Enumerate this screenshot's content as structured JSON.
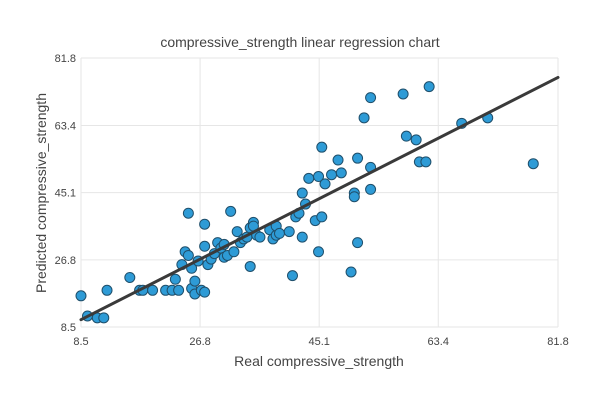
{
  "chart_data": {
    "type": "scatter",
    "title": "compressive_strength linear regression chart",
    "xlabel": "Real compressive_strength",
    "ylabel": "Predicted compressive_strength",
    "xlim": [
      8.5,
      81.8
    ],
    "ylim": [
      8.5,
      81.8
    ],
    "xticks": [
      "8.5",
      "26.8",
      "45.1",
      "63.4",
      "81.8"
    ],
    "yticks": [
      "8.5",
      "26.8",
      "45.1",
      "63.4",
      "81.8"
    ],
    "grid": true,
    "point_color": "#2e9bd6",
    "line_color": "#3a3a3a",
    "regression_line": {
      "x": [
        8.5,
        81.8
      ],
      "y": [
        10.5,
        76.5
      ]
    },
    "points": [
      [
        8.5,
        17.0
      ],
      [
        9.5,
        11.5
      ],
      [
        11.0,
        11.0
      ],
      [
        12.0,
        11.0
      ],
      [
        12.5,
        18.5
      ],
      [
        16.0,
        22.0
      ],
      [
        17.5,
        18.5
      ],
      [
        18.0,
        18.5
      ],
      [
        19.5,
        18.5
      ],
      [
        21.5,
        18.5
      ],
      [
        22.5,
        18.5
      ],
      [
        23.0,
        21.5
      ],
      [
        23.5,
        18.5
      ],
      [
        24.0,
        25.5
      ],
      [
        24.5,
        29.0
      ],
      [
        25.0,
        39.5
      ],
      [
        25.0,
        28.0
      ],
      [
        25.5,
        24.5
      ],
      [
        25.5,
        19.0
      ],
      [
        26.0,
        17.5
      ],
      [
        26.0,
        21.0
      ],
      [
        26.5,
        26.5
      ],
      [
        27.0,
        18.5
      ],
      [
        27.5,
        18.0
      ],
      [
        27.5,
        30.5
      ],
      [
        27.5,
        36.5
      ],
      [
        28.0,
        25.5
      ],
      [
        28.5,
        27.0
      ],
      [
        29.0,
        28.5
      ],
      [
        29.5,
        31.5
      ],
      [
        30.0,
        30.0
      ],
      [
        30.5,
        31.0
      ],
      [
        30.5,
        27.5
      ],
      [
        31.0,
        28.0
      ],
      [
        31.5,
        40.0
      ],
      [
        32.0,
        29.0
      ],
      [
        32.5,
        34.5
      ],
      [
        33.0,
        31.5
      ],
      [
        33.5,
        32.5
      ],
      [
        34.0,
        33.0
      ],
      [
        34.5,
        25.0
      ],
      [
        34.5,
        35.5
      ],
      [
        35.0,
        37.0
      ],
      [
        35.0,
        36.0
      ],
      [
        35.5,
        33.5
      ],
      [
        36.0,
        33.0
      ],
      [
        37.5,
        35.0
      ],
      [
        38.0,
        32.5
      ],
      [
        38.5,
        33.5
      ],
      [
        38.5,
        36.0
      ],
      [
        39.0,
        34.0
      ],
      [
        40.5,
        34.5
      ],
      [
        41.0,
        22.5
      ],
      [
        41.5,
        38.5
      ],
      [
        42.0,
        39.5
      ],
      [
        42.5,
        33.0
      ],
      [
        42.5,
        45.0
      ],
      [
        43.0,
        42.0
      ],
      [
        43.5,
        49.0
      ],
      [
        44.5,
        37.5
      ],
      [
        45.0,
        49.5
      ],
      [
        45.0,
        29.0
      ],
      [
        45.5,
        57.5
      ],
      [
        45.5,
        38.5
      ],
      [
        46.0,
        47.5
      ],
      [
        47.0,
        50.0
      ],
      [
        48.0,
        54.0
      ],
      [
        48.5,
        50.5
      ],
      [
        50.0,
        23.5
      ],
      [
        50.5,
        45.0
      ],
      [
        50.5,
        44.0
      ],
      [
        51.0,
        54.5
      ],
      [
        51.0,
        31.5
      ],
      [
        52.0,
        65.5
      ],
      [
        53.0,
        71.0
      ],
      [
        53.0,
        52.0
      ],
      [
        53.0,
        46.0
      ],
      [
        58.0,
        72.0
      ],
      [
        58.5,
        60.5
      ],
      [
        60.0,
        59.5
      ],
      [
        60.5,
        53.5
      ],
      [
        61.5,
        53.5
      ],
      [
        62.0,
        74.0
      ],
      [
        67.0,
        64.0
      ],
      [
        71.0,
        65.5
      ],
      [
        78.0,
        53.0
      ]
    ]
  }
}
